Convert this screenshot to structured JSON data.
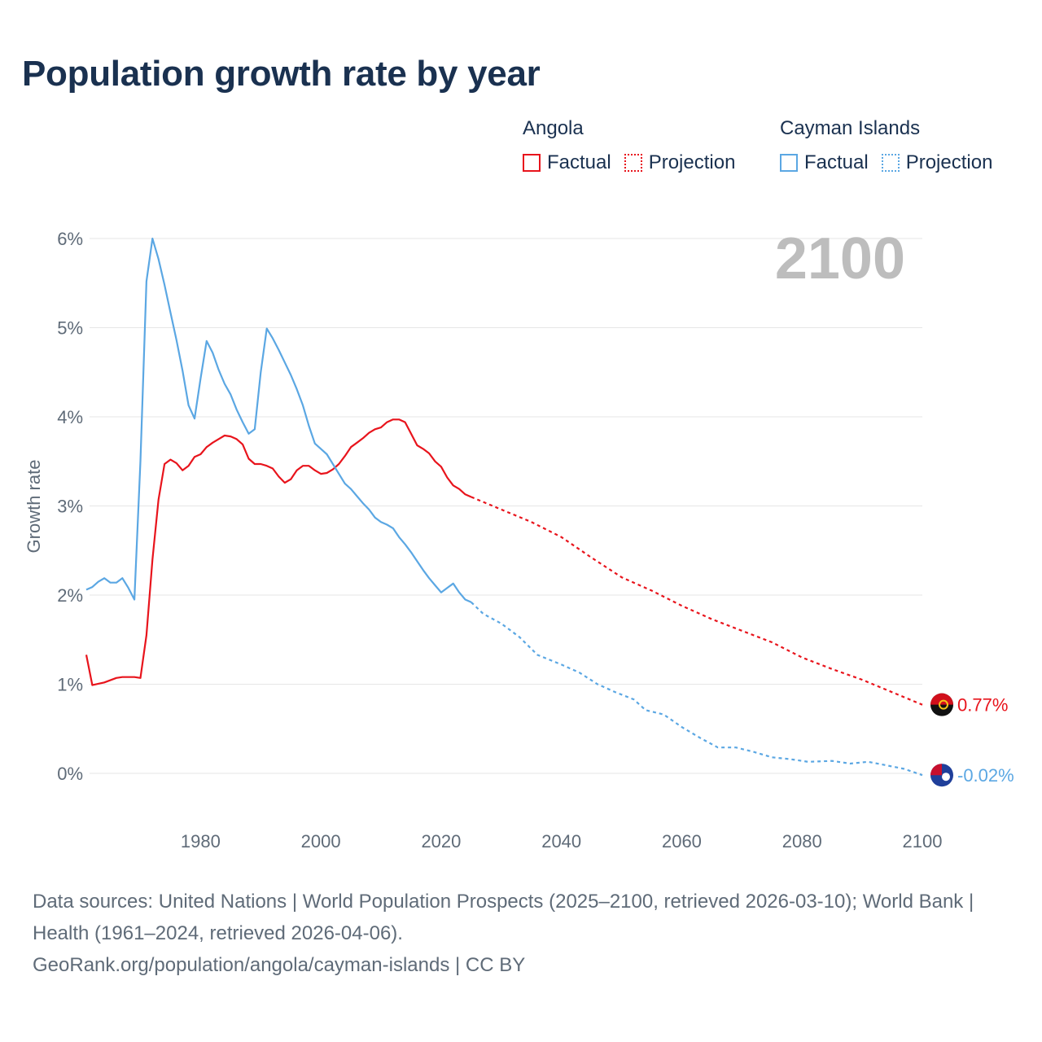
{
  "title": "Population growth rate by year",
  "legend": {
    "groups": [
      {
        "name": "Angola",
        "color": "#e8141c",
        "factual": "Factual",
        "projection": "Projection"
      },
      {
        "name": "Cayman Islands",
        "color": "#5ba7e3",
        "factual": "Factual",
        "projection": "Projection"
      }
    ]
  },
  "chart_data": {
    "type": "line",
    "title": "Population growth rate by year",
    "xlabel": "",
    "ylabel": "Growth rate",
    "xlim": [
      1961,
      2100
    ],
    "ylim": [
      -0.6,
      6.2
    ],
    "x_ticks": [
      1980,
      2000,
      2020,
      2040,
      2060,
      2080,
      2100
    ],
    "y_ticks": [
      {
        "v": 0,
        "label": "0%"
      },
      {
        "v": 1,
        "label": "1%"
      },
      {
        "v": 2,
        "label": "2%"
      },
      {
        "v": 3,
        "label": "3%"
      },
      {
        "v": 4,
        "label": "4%"
      },
      {
        "v": 5,
        "label": "5%"
      },
      {
        "v": 6,
        "label": "6%"
      }
    ],
    "year_label": "2100",
    "series": [
      {
        "name": "Angola",
        "color": "#e8141c",
        "end_label": "0.77%",
        "factual": [
          [
            1961,
            1.33
          ],
          [
            1962,
            0.99
          ],
          [
            1964,
            1.02
          ],
          [
            1966,
            1.07
          ],
          [
            1967,
            1.08
          ],
          [
            1969,
            1.08
          ],
          [
            1970,
            1.07
          ],
          [
            1971,
            1.55
          ],
          [
            1972,
            2.4
          ],
          [
            1973,
            3.07
          ],
          [
            1974,
            3.47
          ],
          [
            1975,
            3.52
          ],
          [
            1976,
            3.48
          ],
          [
            1977,
            3.4
          ],
          [
            1978,
            3.45
          ],
          [
            1979,
            3.55
          ],
          [
            1980,
            3.58
          ],
          [
            1981,
            3.66
          ],
          [
            1982,
            3.71
          ],
          [
            1983,
            3.75
          ],
          [
            1984,
            3.79
          ],
          [
            1985,
            3.78
          ],
          [
            1986,
            3.75
          ],
          [
            1987,
            3.69
          ],
          [
            1988,
            3.53
          ],
          [
            1989,
            3.47
          ],
          [
            1990,
            3.47
          ],
          [
            1991,
            3.45
          ],
          [
            1992,
            3.42
          ],
          [
            1993,
            3.33
          ],
          [
            1994,
            3.26
          ],
          [
            1995,
            3.3
          ],
          [
            1996,
            3.4
          ],
          [
            1997,
            3.45
          ],
          [
            1998,
            3.45
          ],
          [
            1999,
            3.4
          ],
          [
            2000,
            3.36
          ],
          [
            2001,
            3.37
          ],
          [
            2002,
            3.41
          ],
          [
            2003,
            3.47
          ],
          [
            2004,
            3.56
          ],
          [
            2005,
            3.66
          ],
          [
            2006,
            3.71
          ],
          [
            2007,
            3.76
          ],
          [
            2008,
            3.82
          ],
          [
            2009,
            3.86
          ],
          [
            2010,
            3.88
          ],
          [
            2011,
            3.94
          ],
          [
            2012,
            3.97
          ],
          [
            2013,
            3.97
          ],
          [
            2014,
            3.94
          ],
          [
            2015,
            3.81
          ],
          [
            2016,
            3.68
          ],
          [
            2017,
            3.64
          ],
          [
            2018,
            3.59
          ],
          [
            2019,
            3.5
          ],
          [
            2020,
            3.44
          ],
          [
            2021,
            3.32
          ],
          [
            2022,
            3.23
          ],
          [
            2023,
            3.19
          ],
          [
            2024,
            3.13
          ],
          [
            2025,
            3.1
          ]
        ],
        "projection": [
          [
            2025,
            3.1
          ],
          [
            2030,
            2.96
          ],
          [
            2035,
            2.82
          ],
          [
            2040,
            2.65
          ],
          [
            2045,
            2.42
          ],
          [
            2050,
            2.2
          ],
          [
            2055,
            2.05
          ],
          [
            2060,
            1.88
          ],
          [
            2065,
            1.73
          ],
          [
            2070,
            1.6
          ],
          [
            2075,
            1.47
          ],
          [
            2080,
            1.3
          ],
          [
            2085,
            1.17
          ],
          [
            2090,
            1.05
          ],
          [
            2095,
            0.91
          ],
          [
            2100,
            0.77
          ]
        ]
      },
      {
        "name": "Cayman Islands",
        "color": "#5ba7e3",
        "end_label": "-0.02%",
        "factual": [
          [
            1961,
            2.06
          ],
          [
            1962,
            2.09
          ],
          [
            1963,
            2.15
          ],
          [
            1964,
            2.19
          ],
          [
            1965,
            2.14
          ],
          [
            1966,
            2.14
          ],
          [
            1967,
            2.19
          ],
          [
            1968,
            2.08
          ],
          [
            1969,
            1.95
          ],
          [
            1970,
            3.5
          ],
          [
            1971,
            5.52
          ],
          [
            1972,
            6.0
          ],
          [
            1973,
            5.77
          ],
          [
            1974,
            5.48
          ],
          [
            1975,
            5.17
          ],
          [
            1976,
            4.86
          ],
          [
            1977,
            4.52
          ],
          [
            1978,
            4.13
          ],
          [
            1979,
            3.98
          ],
          [
            1980,
            4.43
          ],
          [
            1981,
            4.85
          ],
          [
            1982,
            4.72
          ],
          [
            1983,
            4.53
          ],
          [
            1984,
            4.37
          ],
          [
            1985,
            4.25
          ],
          [
            1986,
            4.08
          ],
          [
            1987,
            3.94
          ],
          [
            1988,
            3.81
          ],
          [
            1989,
            3.86
          ],
          [
            1990,
            4.5
          ],
          [
            1991,
            4.99
          ],
          [
            1992,
            4.88
          ],
          [
            1993,
            4.75
          ],
          [
            1994,
            4.61
          ],
          [
            1995,
            4.47
          ],
          [
            1996,
            4.31
          ],
          [
            1997,
            4.13
          ],
          [
            1998,
            3.9
          ],
          [
            1999,
            3.7
          ],
          [
            2000,
            3.64
          ],
          [
            2001,
            3.58
          ],
          [
            2002,
            3.47
          ],
          [
            2003,
            3.36
          ],
          [
            2004,
            3.25
          ],
          [
            2005,
            3.19
          ],
          [
            2006,
            3.11
          ],
          [
            2007,
            3.03
          ],
          [
            2008,
            2.96
          ],
          [
            2009,
            2.87
          ],
          [
            2010,
            2.82
          ],
          [
            2011,
            2.79
          ],
          [
            2012,
            2.75
          ],
          [
            2013,
            2.65
          ],
          [
            2014,
            2.57
          ],
          [
            2015,
            2.48
          ],
          [
            2016,
            2.38
          ],
          [
            2017,
            2.28
          ],
          [
            2018,
            2.19
          ],
          [
            2019,
            2.11
          ],
          [
            2020,
            2.03
          ],
          [
            2021,
            2.08
          ],
          [
            2022,
            2.13
          ],
          [
            2023,
            2.03
          ],
          [
            2024,
            1.95
          ],
          [
            2025,
            1.92
          ]
        ],
        "projection": [
          [
            2025,
            1.92
          ],
          [
            2027,
            1.79
          ],
          [
            2030,
            1.68
          ],
          [
            2033,
            1.53
          ],
          [
            2036,
            1.33
          ],
          [
            2040,
            1.22
          ],
          [
            2043,
            1.13
          ],
          [
            2046,
            1.0
          ],
          [
            2049,
            0.91
          ],
          [
            2052,
            0.83
          ],
          [
            2054,
            0.71
          ],
          [
            2057,
            0.66
          ],
          [
            2060,
            0.52
          ],
          [
            2063,
            0.4
          ],
          [
            2066,
            0.29
          ],
          [
            2069,
            0.29
          ],
          [
            2072,
            0.24
          ],
          [
            2075,
            0.18
          ],
          [
            2078,
            0.16
          ],
          [
            2081,
            0.13
          ],
          [
            2085,
            0.14
          ],
          [
            2088,
            0.11
          ],
          [
            2091,
            0.13
          ],
          [
            2094,
            0.09
          ],
          [
            2097,
            0.05
          ],
          [
            2100,
            -0.02
          ]
        ]
      }
    ]
  },
  "sources": {
    "line1": "Data sources: United Nations | World Population Prospects (2025–2100, retrieved 2026-03-10); World Bank | Health (1961–2024, retrieved 2026-04-06).",
    "line2": "GeoRank.org/population/angola/cayman-islands | CC BY"
  }
}
